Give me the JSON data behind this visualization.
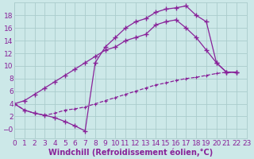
{
  "xlabel": "Windchill (Refroidissement éolien,°C)",
  "bg_color": "#cce8e8",
  "grid_color": "#aacccc",
  "line_color": "#882299",
  "curve1_x": [
    0,
    1,
    2,
    3,
    4,
    5,
    6,
    7,
    8,
    9,
    10,
    11,
    12,
    13,
    14,
    15,
    16,
    17,
    18,
    19,
    20,
    21,
    22
  ],
  "curve1_y": [
    4.0,
    3.0,
    2.5,
    2.2,
    1.8,
    1.2,
    0.5,
    -0.3,
    10.5,
    13.0,
    14.5,
    16.0,
    17.0,
    17.5,
    18.5,
    19.0,
    19.2,
    19.5,
    18.0,
    17.0,
    10.5,
    9.0,
    9.0
  ],
  "curve2_x": [
    0,
    1,
    2,
    3,
    4,
    5,
    6,
    7,
    8,
    9,
    10,
    11,
    12,
    13,
    14,
    15,
    16,
    17,
    18,
    19,
    20,
    21,
    22
  ],
  "curve2_y": [
    4.0,
    4.5,
    5.5,
    6.5,
    7.5,
    8.5,
    9.5,
    10.5,
    11.5,
    12.5,
    13.0,
    14.0,
    14.5,
    15.0,
    16.5,
    17.0,
    17.3,
    16.0,
    14.5,
    12.5,
    10.5,
    9.0,
    9.0
  ],
  "curve3_x": [
    0,
    1,
    2,
    3,
    4,
    5,
    6,
    7,
    8,
    9,
    10,
    11,
    12,
    13,
    14,
    15,
    16,
    17,
    18,
    19,
    20,
    21,
    22
  ],
  "curve3_y": [
    4.0,
    3.0,
    2.5,
    2.2,
    2.5,
    3.0,
    3.2,
    3.5,
    4.0,
    4.5,
    5.0,
    5.5,
    6.0,
    6.5,
    7.0,
    7.3,
    7.7,
    8.0,
    8.2,
    8.5,
    8.8,
    9.0,
    9.0
  ],
  "xlim": [
    0,
    23
  ],
  "ylim": [
    -1.5,
    20
  ],
  "xticks": [
    0,
    1,
    2,
    3,
    4,
    5,
    6,
    7,
    8,
    9,
    10,
    11,
    12,
    13,
    14,
    15,
    16,
    17,
    18,
    19,
    20,
    21,
    22,
    23
  ],
  "yticks": [
    0,
    2,
    4,
    6,
    8,
    10,
    12,
    14,
    16,
    18
  ],
  "ytick_labels": [
    "−0",
    "2",
    "4",
    "6",
    "8",
    "10",
    "12",
    "14",
    "16",
    "18"
  ],
  "xlabel_fontsize": 7,
  "tick_fontsize": 6.5
}
